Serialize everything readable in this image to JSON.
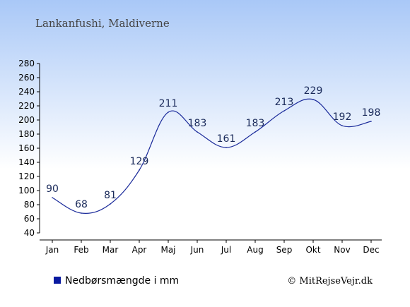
{
  "chart_data": {
    "type": "line",
    "title": "Lankanfushi, Maldiverne",
    "categories": [
      "Jan",
      "Feb",
      "Mar",
      "Apr",
      "Maj",
      "Jun",
      "Jul",
      "Aug",
      "Sep",
      "Okt",
      "Nov",
      "Dec"
    ],
    "series": [
      {
        "name": "Nedbørsmængde i mm",
        "values": [
          90,
          68,
          81,
          129,
          211,
          183,
          161,
          183,
          213,
          229,
          192,
          198
        ],
        "color": "#1a2a9a"
      }
    ],
    "ylim": [
      40,
      280
    ],
    "yticks": [
      40,
      60,
      80,
      100,
      120,
      140,
      160,
      180,
      200,
      220,
      240,
      260,
      280
    ],
    "grid": false,
    "legend": "bottom-left",
    "credit": "© MitRejseVejr.dk"
  },
  "colors": {
    "background_top": "#a9c8f7",
    "background_bottom": "#ffffff",
    "line": "#1a2a9a",
    "legend_marker": "#0a1aa0"
  }
}
